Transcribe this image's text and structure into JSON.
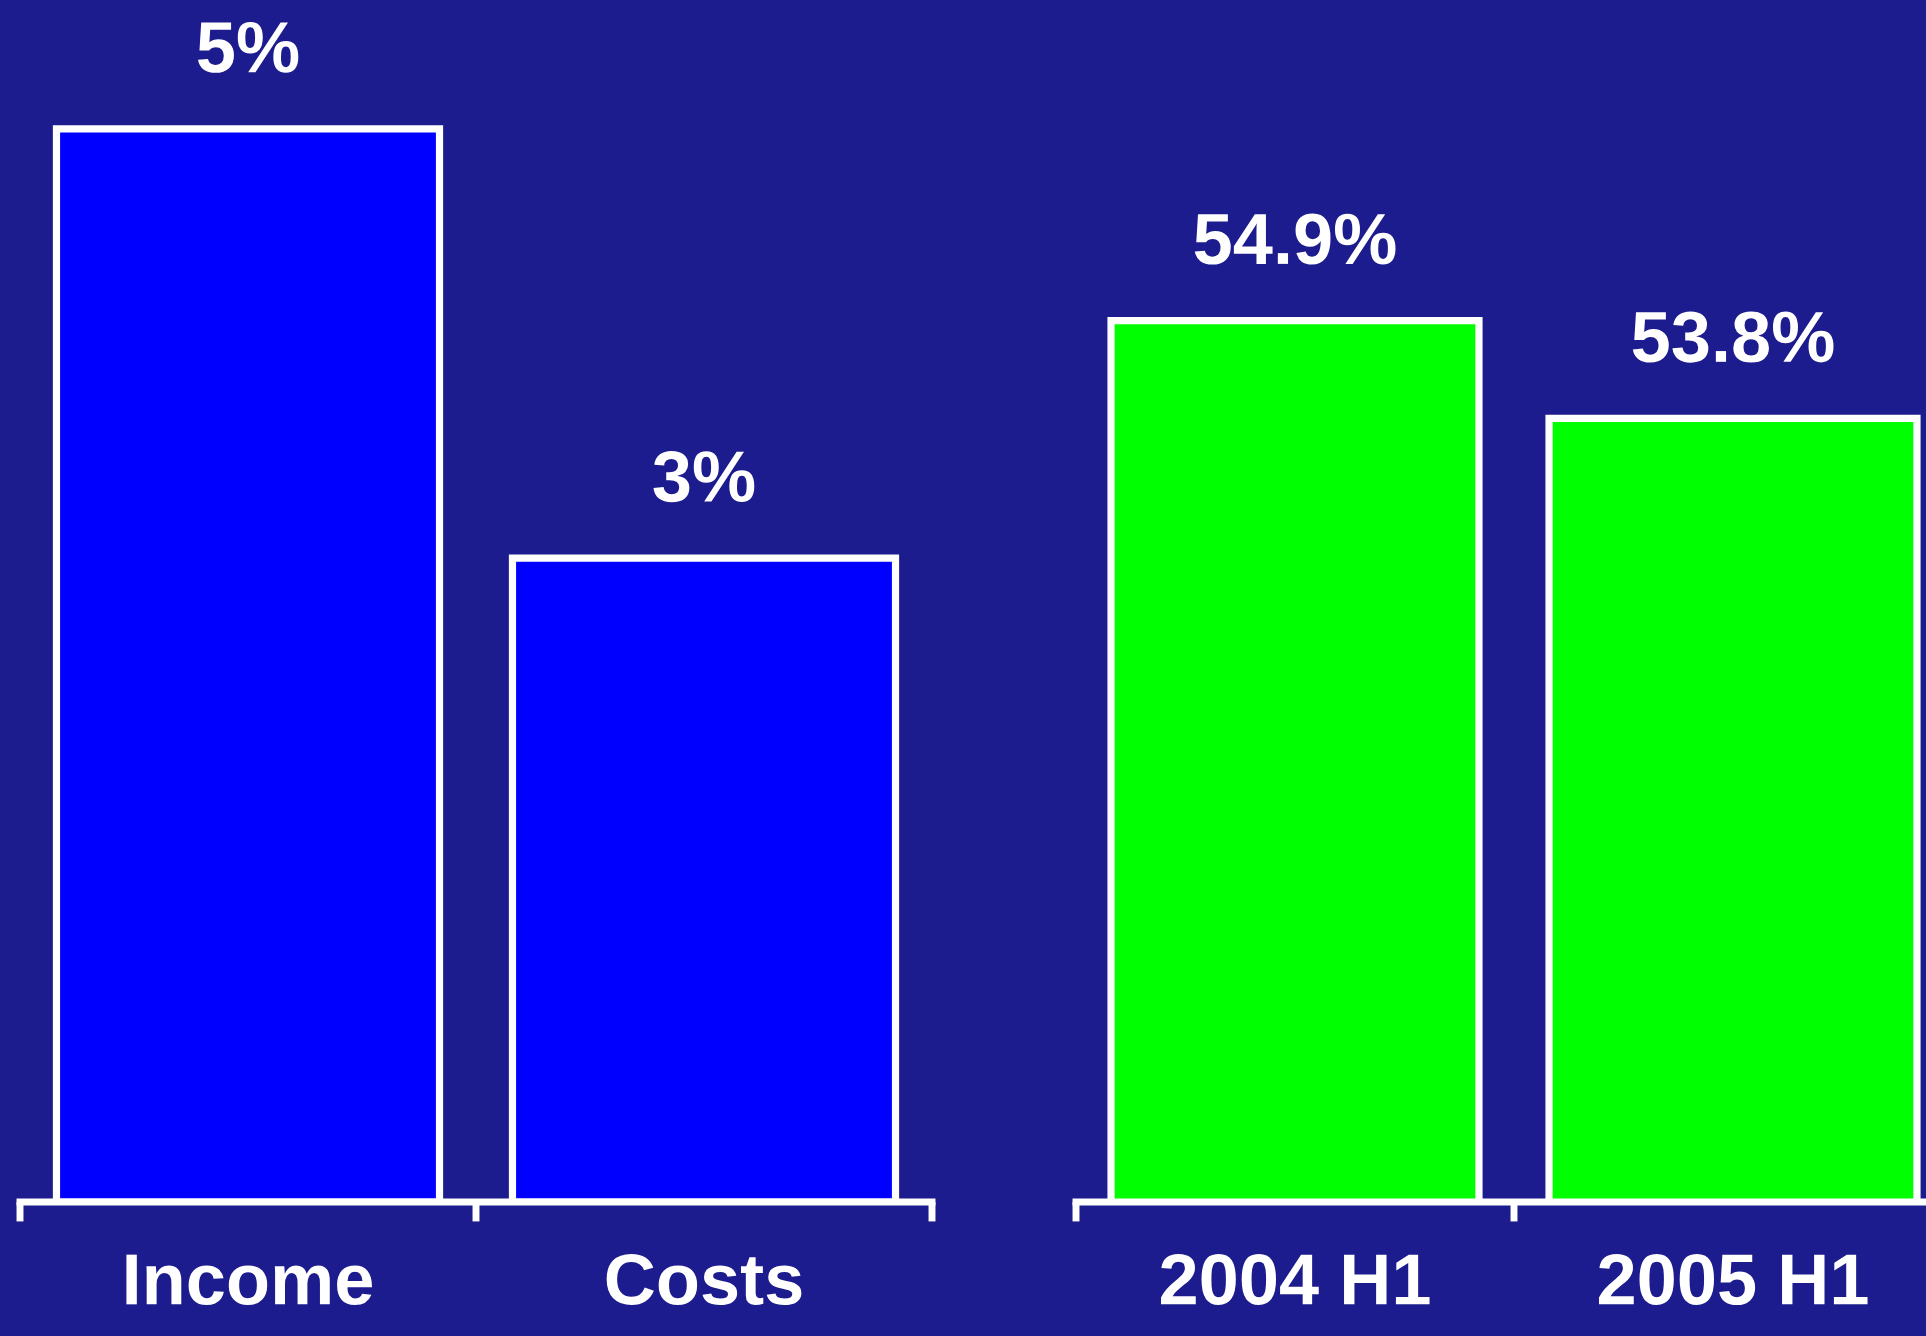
{
  "chart_data": [
    {
      "type": "bar",
      "categories": [
        "Income",
        "Costs"
      ],
      "values": [
        5,
        3
      ],
      "color": "#0000ff",
      "value_labels": [
        "5%",
        "3%"
      ],
      "ylim": [
        0,
        5.6
      ],
      "tick_labels": "x"
    },
    {
      "type": "bar",
      "categories": [
        "2004 H1",
        "2005 H1"
      ],
      "values": [
        54.9,
        53.8
      ],
      "color": "#00ff00",
      "value_labels": [
        "54.9%",
        "53.8%"
      ],
      "ylim": [
        45,
        58.5
      ],
      "tick_labels": "x"
    }
  ]
}
